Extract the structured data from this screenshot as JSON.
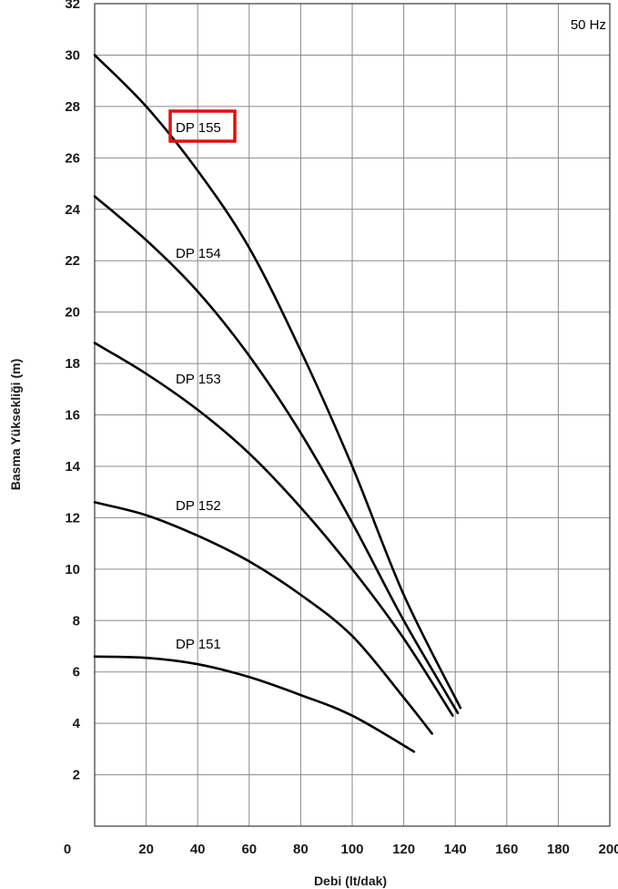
{
  "chart_data": {
    "type": "line",
    "title": "",
    "annotation": "50 Hz",
    "xlabel": "Debi (lt/dak)",
    "ylabel": "Basma Yüksekliği (m)",
    "xlim": [
      0,
      200
    ],
    "ylim": [
      0,
      32
    ],
    "x_ticks": [
      "0",
      "20",
      "40",
      "60",
      "80",
      "100",
      "120",
      "140",
      "160",
      "180",
      "200"
    ],
    "y_ticks": [
      "2",
      "4",
      "6",
      "8",
      "10",
      "12",
      "14",
      "16",
      "18",
      "20",
      "22",
      "24",
      "26",
      "28",
      "30",
      "32"
    ],
    "grid": true,
    "highlighted_series": "DP 155",
    "series": [
      {
        "name": "DP 155",
        "x": [
          0,
          20,
          40,
          60,
          80,
          100,
          120,
          142
        ],
        "y": [
          30.0,
          28.0,
          25.5,
          22.5,
          18.5,
          14.0,
          9.0,
          4.6
        ]
      },
      {
        "name": "DP 154",
        "x": [
          0,
          20,
          40,
          60,
          80,
          100,
          120,
          141
        ],
        "y": [
          24.5,
          22.8,
          20.8,
          18.3,
          15.3,
          11.8,
          8.0,
          4.4
        ]
      },
      {
        "name": "DP 153",
        "x": [
          0,
          20,
          40,
          60,
          80,
          100,
          120,
          139
        ],
        "y": [
          18.8,
          17.6,
          16.2,
          14.5,
          12.4,
          10.0,
          7.3,
          4.3
        ]
      },
      {
        "name": "DP 152",
        "x": [
          0,
          20,
          40,
          60,
          80,
          100,
          120,
          131
        ],
        "y": [
          12.6,
          12.1,
          11.3,
          10.3,
          9.0,
          7.4,
          5.0,
          3.6
        ]
      },
      {
        "name": "DP 151",
        "x": [
          0,
          20,
          40,
          60,
          80,
          100,
          124
        ],
        "y": [
          6.6,
          6.55,
          6.3,
          5.8,
          5.1,
          4.3,
          2.9
        ]
      }
    ]
  }
}
